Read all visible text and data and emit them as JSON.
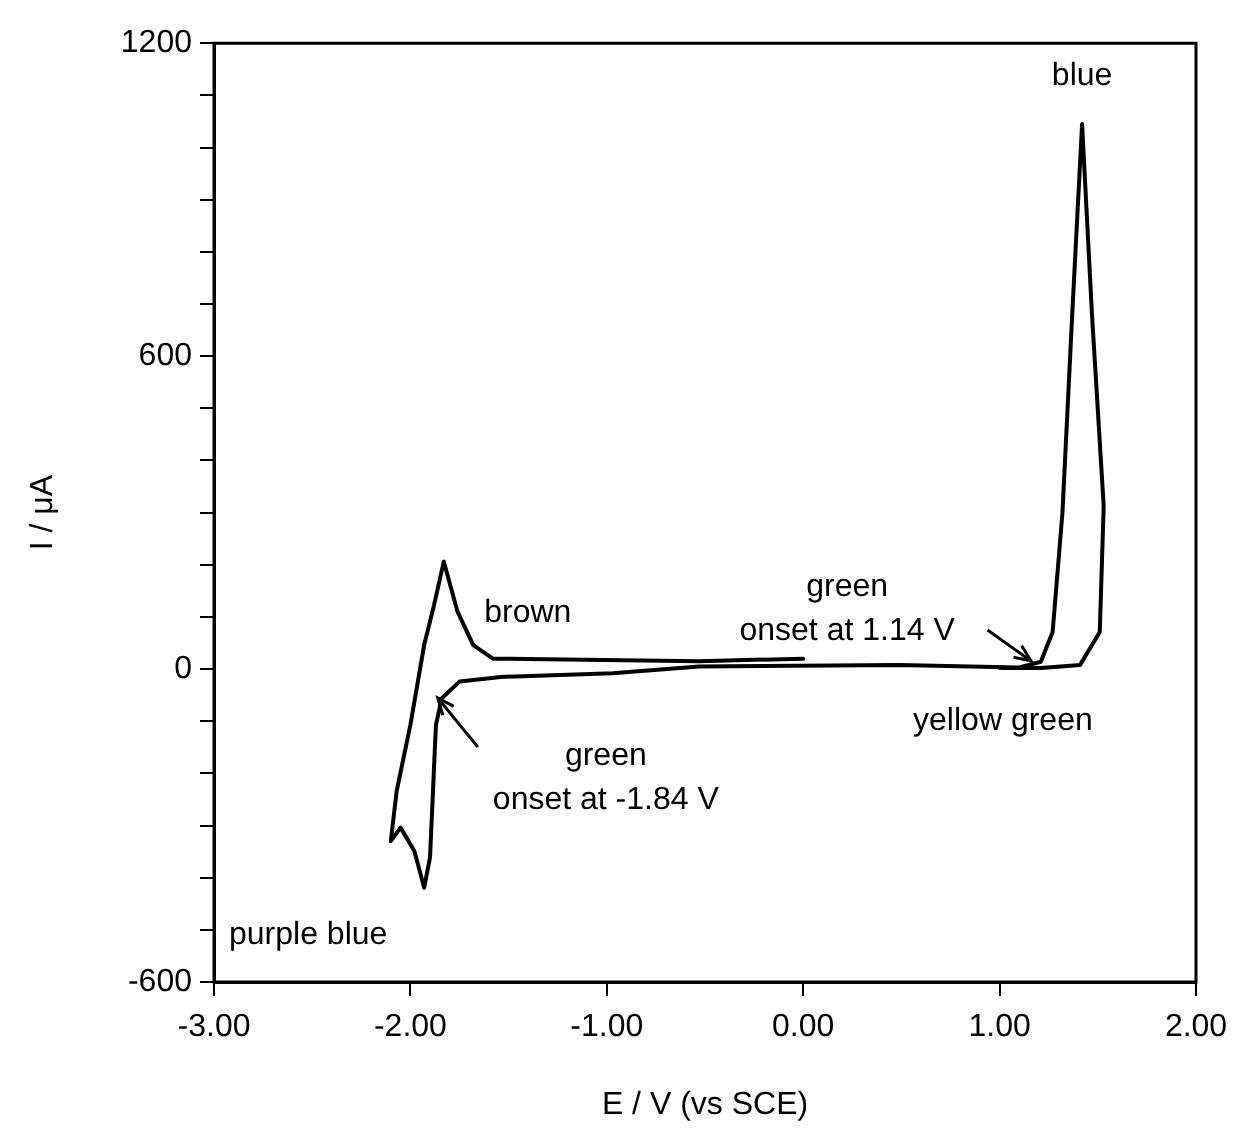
{
  "chart_data": {
    "type": "line",
    "xlabel": "E / V (vs SCE)",
    "ylabel": "I / μA",
    "x": [
      0.0,
      -0.53,
      -1.58,
      -1.68,
      -1.76,
      -1.83,
      -1.88,
      -1.93,
      -2.0,
      -2.07,
      -2.1,
      -2.05,
      -1.98,
      -1.93,
      -1.9,
      -1.87,
      -1.84,
      -1.75,
      -1.54,
      -0.97,
      -0.53,
      0.49,
      1.1,
      1.21,
      1.27,
      1.32,
      1.37,
      1.42,
      1.47,
      1.53,
      1.51,
      1.41,
      1.21,
      1.0
    ],
    "series": [
      {
        "color": "#000000",
        "values": [
          20,
          15,
          20,
          46,
          110,
          206,
          122,
          46,
          -107,
          -234,
          -330,
          -304,
          -349,
          -419,
          -361,
          -107,
          -56,
          -24,
          -15,
          -8,
          5,
          8,
          3,
          14,
          71,
          300,
          682,
          1045,
          682,
          313,
          71,
          8,
          2,
          2
        ]
      }
    ],
    "xlim": [
      -3,
      2
    ],
    "xticks": [
      {
        "value": -3,
        "label": "-3.00"
      },
      {
        "value": -2,
        "label": "-2.00"
      },
      {
        "value": -1,
        "label": "-1.00"
      },
      {
        "value": 0,
        "label": "0.00"
      },
      {
        "value": 1,
        "label": "1.00"
      },
      {
        "value": 2,
        "label": "2.00"
      }
    ],
    "ylim": [
      -600,
      1200
    ],
    "yticks": [
      -600,
      {
        "value": -500,
        "label": null
      },
      {
        "value": -400,
        "label": null
      },
      {
        "value": -300,
        "label": null
      },
      {
        "value": -200,
        "label": null
      },
      {
        "value": -100,
        "label": null
      },
      0,
      {
        "value": 100,
        "label": null
      },
      {
        "value": 200,
        "label": null
      },
      {
        "value": 300,
        "label": null
      },
      {
        "value": 400,
        "label": null
      },
      {
        "value": 500,
        "label": null
      },
      600,
      {
        "value": 700,
        "label": null
      },
      {
        "value": 800,
        "label": null
      },
      {
        "value": 900,
        "label": null
      },
      {
        "value": 1000,
        "label": null
      },
      {
        "value": 1100,
        "label": null
      },
      1200
    ],
    "grid": false,
    "legend": false,
    "marker": "none",
    "line_style": "solid",
    "annotations": [
      {
        "text": "blue",
        "x": 1.42,
        "y": 1045
      },
      {
        "text": "brown",
        "x": -1.83,
        "y": 206
      },
      {
        "text": "green\nonset at 1.14 V",
        "x": 1.14,
        "y": 0
      },
      {
        "text": "green\nonset at -1.84 V",
        "x": -1.84,
        "y": -40
      },
      {
        "text": "yellow green",
        "x": 1.2,
        "y": 0
      },
      {
        "text": "purple blue",
        "x": -1.93,
        "y": -419
      }
    ]
  }
}
